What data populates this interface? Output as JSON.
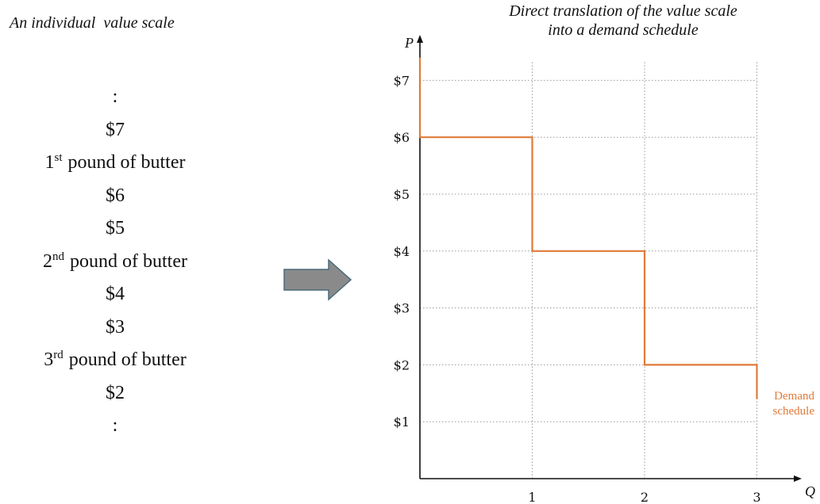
{
  "left_panel": {
    "title": "An individual  value scale",
    "items": [
      {
        "text": ":"
      },
      {
        "text": "$7"
      },
      {
        "sup_prefix": "1",
        "sup": "st",
        "text": " pound of butter"
      },
      {
        "text": "$6"
      },
      {
        "text": "$5"
      },
      {
        "sup_prefix": "2",
        "sup": "nd",
        "text": " pound of butter"
      },
      {
        "text": "$4"
      },
      {
        "text": "$3"
      },
      {
        "sup_prefix": "3",
        "sup": "rd",
        "text": " pound of butter"
      },
      {
        "text": "$2"
      },
      {
        "text": ":"
      }
    ]
  },
  "arrow": {
    "icon": "right-arrow-icon",
    "fill": "#8a8a8a",
    "stroke": "#4a6a7a"
  },
  "chart_data": {
    "type": "line",
    "title_lines": [
      "Direct translation of the value scale",
      "into a demand schedule"
    ],
    "xlabel": "Q",
    "ylabel": "P",
    "xlim": [
      0,
      3.5
    ],
    "ylim": [
      0,
      7.5
    ],
    "x_ticks": [
      1,
      2,
      3
    ],
    "x_tick_labels": [
      "1",
      "2",
      "3"
    ],
    "y_ticks": [
      1,
      2,
      3,
      4,
      5,
      6,
      7
    ],
    "y_tick_labels": [
      "$1",
      "$2",
      "$3",
      "$4",
      "$5",
      "$6",
      "$7"
    ],
    "grid": true,
    "series": [
      {
        "name": "",
        "color": "#e07a38",
        "step_points": [
          [
            0,
            7.4
          ],
          [
            0,
            6
          ],
          [
            1,
            6
          ],
          [
            1,
            4
          ],
          [
            2,
            4
          ],
          [
            2,
            2
          ],
          [
            3,
            2
          ],
          [
            3,
            1.4
          ]
        ]
      }
    ],
    "annotation": [
      "Demand",
      "schedule"
    ]
  }
}
